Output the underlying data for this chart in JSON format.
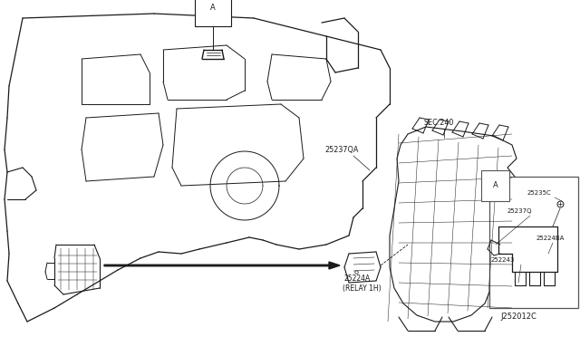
{
  "bg_color": "#ffffff",
  "line_color": "#1a1a1a",
  "text_color": "#1a1a1a",
  "figsize": [
    6.4,
    3.72
  ],
  "dpi": 100,
  "labels": {
    "A_main": "A",
    "A_inset": "A",
    "25237QA": "25237QA",
    "SEC240": "SEC.240",
    "25224A": "25224A",
    "relay": "(RELAY 1H)",
    "25235C": "25235C",
    "25237Q": "25237Q",
    "25224BA": "25224BA",
    "252243": "252243",
    "J252012C": "J252012C"
  }
}
